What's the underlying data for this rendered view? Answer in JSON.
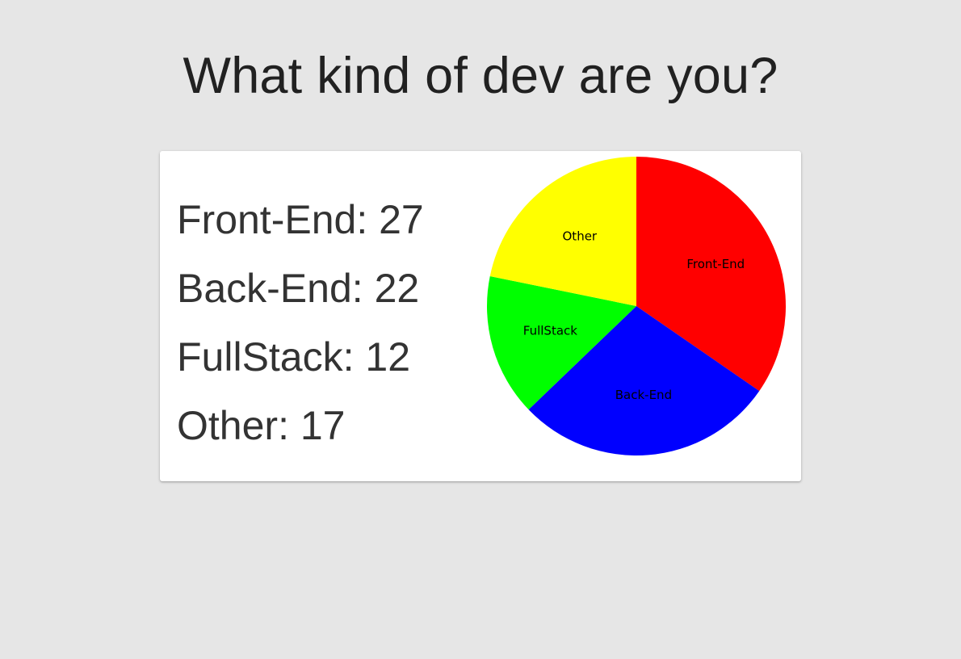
{
  "page": {
    "title": "What kind of dev are you?"
  },
  "legend": [
    {
      "label": "Front-End",
      "value": 27
    },
    {
      "label": "Back-End",
      "value": 22
    },
    {
      "label": "FullStack",
      "value": 12
    },
    {
      "label": "Other",
      "value": 17
    }
  ],
  "chart_data": {
    "type": "pie",
    "title": "",
    "categories": [
      "Front-End",
      "Back-End",
      "FullStack",
      "Other"
    ],
    "values": [
      27,
      22,
      12,
      17
    ],
    "colors": [
      "#ff0000",
      "#0000ff",
      "#00ff00",
      "#ffff00"
    ],
    "start_angle": "12 o'clock",
    "direction": "clockwise",
    "labels_inside_slices": true
  }
}
